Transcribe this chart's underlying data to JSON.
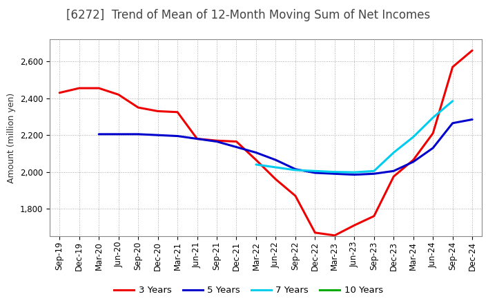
{
  "title": "[6272]  Trend of Mean of 12-Month Moving Sum of Net Incomes",
  "ylabel": "Amount (million yen)",
  "background_color": "#ffffff",
  "plot_bg_color": "#ffffff",
  "grid_color": "#aaaaaa",
  "title_color": "#444444",
  "ylim": [
    1650,
    2720
  ],
  "yticks": [
    1800,
    2000,
    2200,
    2400,
    2600
  ],
  "x_labels": [
    "Sep-19",
    "Dec-19",
    "Mar-20",
    "Jun-20",
    "Sep-20",
    "Dec-20",
    "Mar-21",
    "Jun-21",
    "Sep-21",
    "Dec-21",
    "Mar-22",
    "Jun-22",
    "Sep-22",
    "Dec-22",
    "Mar-23",
    "Jun-23",
    "Sep-23",
    "Dec-23",
    "Mar-24",
    "Jun-24",
    "Sep-24",
    "Dec-24"
  ],
  "series": {
    "3y": {
      "color": "#ee0000",
      "label": "3 Years",
      "values": [
        2430,
        2455,
        2455,
        2420,
        2350,
        2330,
        2325,
        2180,
        2170,
        2165,
        2065,
        1960,
        1870,
        1670,
        1655,
        1710,
        1760,
        1975,
        2065,
        2210,
        2570,
        2660
      ]
    },
    "5y": {
      "color": "#0000cc",
      "label": "5 Years",
      "values": [
        null,
        null,
        2205,
        2205,
        2205,
        2200,
        2195,
        2180,
        2165,
        2135,
        2105,
        2065,
        2015,
        1995,
        1990,
        1985,
        1990,
        2005,
        2055,
        2130,
        2265,
        2285
      ]
    },
    "7y": {
      "color": "#00ccee",
      "label": "7 Years",
      "values": [
        null,
        null,
        null,
        null,
        null,
        null,
        null,
        null,
        null,
        null,
        2040,
        2025,
        2010,
        2005,
        2000,
        1998,
        2005,
        2105,
        2190,
        2295,
        2385,
        null
      ]
    },
    "10y": {
      "color": "#00aa00",
      "label": "10 Years",
      "values": [
        null,
        null,
        null,
        null,
        null,
        null,
        null,
        null,
        null,
        null,
        null,
        null,
        null,
        null,
        null,
        null,
        null,
        null,
        null,
        null,
        null,
        null
      ]
    }
  },
  "legend_entries": [
    "3 Years",
    "5 Years",
    "7 Years",
    "10 Years"
  ],
  "legend_colors": [
    "#ee0000",
    "#0000cc",
    "#00ccee",
    "#00aa00"
  ],
  "title_fontsize": 12,
  "label_fontsize": 9,
  "tick_fontsize": 8.5
}
